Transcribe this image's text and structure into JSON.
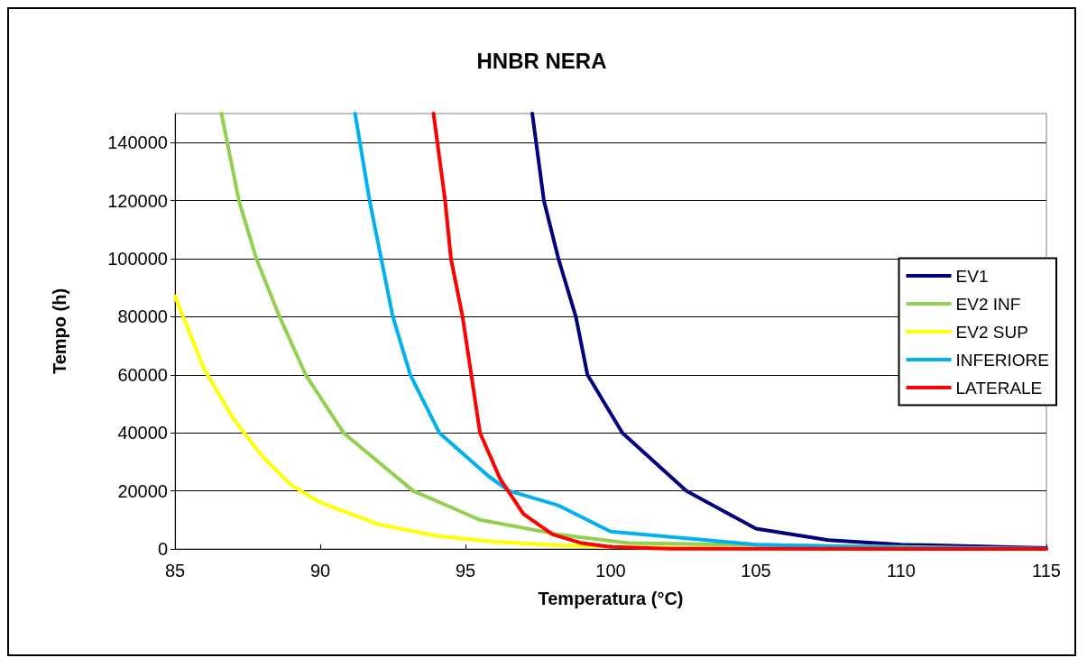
{
  "chart_data": {
    "type": "line",
    "title": "HNBR NERA",
    "xlabel": "Temperatura (°C)",
    "ylabel": "Tempo (h)",
    "xlim": [
      85,
      115
    ],
    "xticks": [
      85,
      90,
      95,
      100,
      105,
      110,
      115
    ],
    "ylim": [
      0,
      150000
    ],
    "yticks": [
      0,
      20000,
      40000,
      60000,
      80000,
      100000,
      120000,
      140000
    ],
    "grid": "y",
    "legend": "right",
    "marker": "none",
    "line_style": "solid",
    "series": [
      {
        "name": "EV1",
        "color": "#000080",
        "x": [
          97.3,
          97.7,
          98.2,
          98.8,
          99.2,
          100.4,
          102.6,
          105,
          107.5,
          110,
          115
        ],
        "values": [
          150000,
          120000,
          100000,
          80000,
          60000,
          40000,
          20000,
          7000,
          3000,
          1500,
          300
        ]
      },
      {
        "name": "EV2 INF",
        "color": "#92d050",
        "x": [
          86.6,
          87.2,
          87.8,
          88.6,
          89.5,
          90.8,
          93.2,
          95.5,
          98.2,
          100.6,
          115
        ],
        "values": [
          150000,
          120000,
          100000,
          80000,
          60000,
          40000,
          20000,
          10000,
          5000,
          2000,
          0
        ]
      },
      {
        "name": "EV2 SUP",
        "color": "#ffff00",
        "x": [
          85,
          86,
          87,
          88,
          89,
          90,
          92,
          94,
          96,
          98,
          100,
          105,
          115
        ],
        "values": [
          87000,
          62000,
          45000,
          32000,
          22000,
          16000,
          8500,
          4500,
          2500,
          1300,
          700,
          0,
          0
        ]
      },
      {
        "name": "INFERIORE",
        "color": "#00b0f0",
        "x": [
          91.2,
          91.7,
          92.1,
          92.5,
          93.1,
          94.1,
          95.8,
          96.5,
          98.2,
          100,
          105,
          110,
          115
        ],
        "values": [
          150000,
          120000,
          100000,
          80000,
          60000,
          40000,
          25000,
          20000,
          15000,
          6000,
          1500,
          400,
          100
        ]
      },
      {
        "name": "LATERALE",
        "color": "#ff0000",
        "x": [
          93.9,
          94.3,
          94.5,
          94.9,
          95.2,
          95.5,
          96.2,
          97,
          98,
          99,
          100,
          102,
          115
        ],
        "values": [
          150000,
          120000,
          100000,
          80000,
          60000,
          40000,
          24000,
          12000,
          5000,
          2000,
          700,
          100,
          0
        ]
      }
    ]
  }
}
